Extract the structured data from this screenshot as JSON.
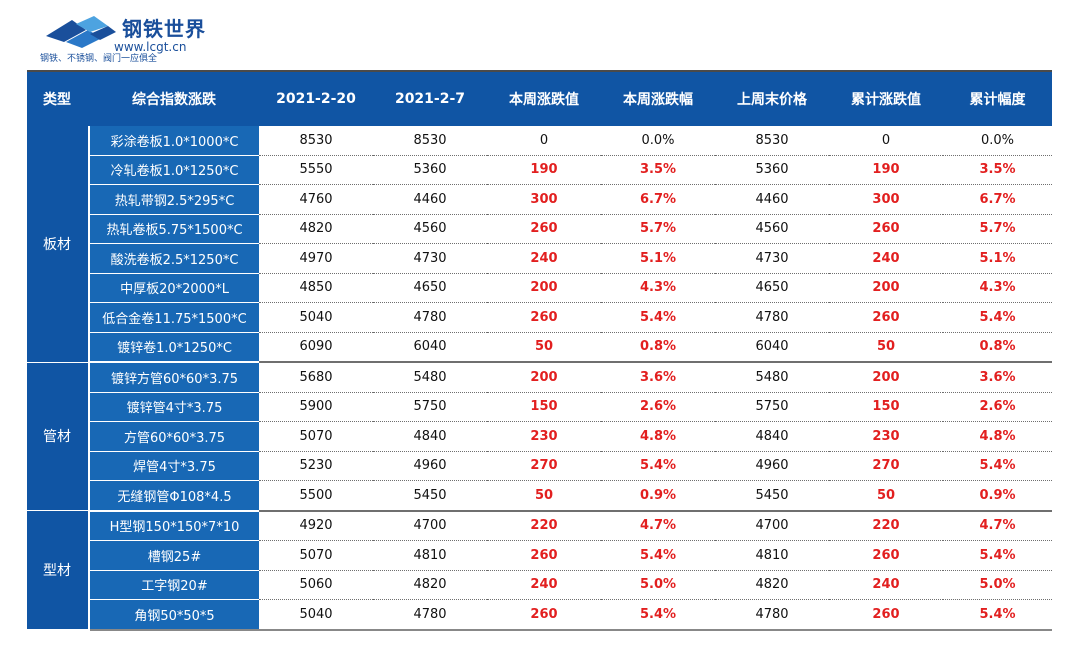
{
  "logo": {
    "name": "钢铁世界",
    "url": "www.lcgt.cn",
    "slogan": "钢铁、不锈钢、阀门一应俱全"
  },
  "colors": {
    "header_bg": "#1055a4",
    "name_bg": "#1868b5",
    "highlight": "#e21f1f"
  },
  "table": {
    "headers": [
      "类型",
      "综合指数涨跌",
      "2021-2-20",
      "2021-2-7",
      "本周涨跌值",
      "本周涨跌幅",
      "上周末价格",
      "累计涨跌值",
      "累计幅度"
    ],
    "groups": [
      {
        "type": "板材",
        "rows": [
          {
            "name": "彩涂卷板1.0*1000*C",
            "cur": "8530",
            "prev": "8530",
            "wk_chg": "0",
            "wk_pct": "0.0%",
            "last_wk": "8530",
            "cum_chg": "0",
            "cum_pct": "0.0%"
          },
          {
            "name": "冷轧卷板1.0*1250*C",
            "cur": "5550",
            "prev": "5360",
            "wk_chg": "190",
            "wk_pct": "3.5%",
            "last_wk": "5360",
            "cum_chg": "190",
            "cum_pct": "3.5%"
          },
          {
            "name": "热轧带钢2.5*295*C",
            "cur": "4760",
            "prev": "4460",
            "wk_chg": "300",
            "wk_pct": "6.7%",
            "last_wk": "4460",
            "cum_chg": "300",
            "cum_pct": "6.7%"
          },
          {
            "name": "热轧卷板5.75*1500*C",
            "cur": "4820",
            "prev": "4560",
            "wk_chg": "260",
            "wk_pct": "5.7%",
            "last_wk": "4560",
            "cum_chg": "260",
            "cum_pct": "5.7%"
          },
          {
            "name": "酸洗卷板2.5*1250*C",
            "cur": "4970",
            "prev": "4730",
            "wk_chg": "240",
            "wk_pct": "5.1%",
            "last_wk": "4730",
            "cum_chg": "240",
            "cum_pct": "5.1%"
          },
          {
            "name": "中厚板20*2000*L",
            "cur": "4850",
            "prev": "4650",
            "wk_chg": "200",
            "wk_pct": "4.3%",
            "last_wk": "4650",
            "cum_chg": "200",
            "cum_pct": "4.3%"
          },
          {
            "name": "低合金卷11.75*1500*C",
            "cur": "5040",
            "prev": "4780",
            "wk_chg": "260",
            "wk_pct": "5.4%",
            "last_wk": "4780",
            "cum_chg": "260",
            "cum_pct": "5.4%"
          },
          {
            "name": "镀锌卷1.0*1250*C",
            "cur": "6090",
            "prev": "6040",
            "wk_chg": "50",
            "wk_pct": "0.8%",
            "last_wk": "6040",
            "cum_chg": "50",
            "cum_pct": "0.8%"
          }
        ]
      },
      {
        "type": "管材",
        "rows": [
          {
            "name": "镀锌方管60*60*3.75",
            "cur": "5680",
            "prev": "5480",
            "wk_chg": "200",
            "wk_pct": "3.6%",
            "last_wk": "5480",
            "cum_chg": "200",
            "cum_pct": "3.6%"
          },
          {
            "name": "镀锌管4寸*3.75",
            "cur": "5900",
            "prev": "5750",
            "wk_chg": "150",
            "wk_pct": "2.6%",
            "last_wk": "5750",
            "cum_chg": "150",
            "cum_pct": "2.6%"
          },
          {
            "name": "方管60*60*3.75",
            "cur": "5070",
            "prev": "4840",
            "wk_chg": "230",
            "wk_pct": "4.8%",
            "last_wk": "4840",
            "cum_chg": "230",
            "cum_pct": "4.8%"
          },
          {
            "name": "焊管4寸*3.75",
            "cur": "5230",
            "prev": "4960",
            "wk_chg": "270",
            "wk_pct": "5.4%",
            "last_wk": "4960",
            "cum_chg": "270",
            "cum_pct": "5.4%"
          },
          {
            "name": "无缝钢管Φ108*4.5",
            "cur": "5500",
            "prev": "5450",
            "wk_chg": "50",
            "wk_pct": "0.9%",
            "last_wk": "5450",
            "cum_chg": "50",
            "cum_pct": "0.9%"
          }
        ]
      },
      {
        "type": "型材",
        "rows": [
          {
            "name": "H型钢150*150*7*10",
            "cur": "4920",
            "prev": "4700",
            "wk_chg": "220",
            "wk_pct": "4.7%",
            "last_wk": "4700",
            "cum_chg": "220",
            "cum_pct": "4.7%"
          },
          {
            "name": "槽钢25#",
            "cur": "5070",
            "prev": "4810",
            "wk_chg": "260",
            "wk_pct": "5.4%",
            "last_wk": "4810",
            "cum_chg": "260",
            "cum_pct": "5.4%"
          },
          {
            "name": "工字钢20#",
            "cur": "5060",
            "prev": "4820",
            "wk_chg": "240",
            "wk_pct": "5.0%",
            "last_wk": "4820",
            "cum_chg": "240",
            "cum_pct": "5.0%"
          },
          {
            "name": "角钢50*50*5",
            "cur": "5040",
            "prev": "4780",
            "wk_chg": "260",
            "wk_pct": "5.4%",
            "last_wk": "4780",
            "cum_chg": "260",
            "cum_pct": "5.4%"
          }
        ]
      }
    ]
  }
}
